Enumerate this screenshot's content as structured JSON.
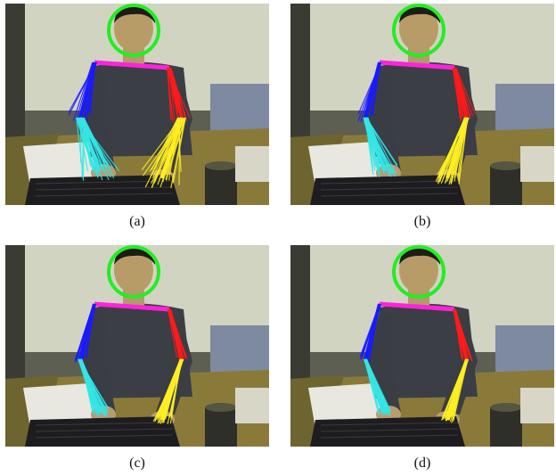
{
  "panels": [
    {
      "caption": "(a)",
      "spread": 1.0
    },
    {
      "caption": "(b)",
      "spread": 0.55
    },
    {
      "caption": "(c)",
      "spread": 0.35
    },
    {
      "caption": "(d)",
      "spread": 0.2
    }
  ],
  "colors": {
    "head": "#22ee22",
    "shoulders": "#ff22dd",
    "left_upper_arm": "#1a1aff",
    "left_forearm": "#33e6e6",
    "right_upper_arm": "#ff1a1a",
    "right_forearm": "#ffee22"
  }
}
